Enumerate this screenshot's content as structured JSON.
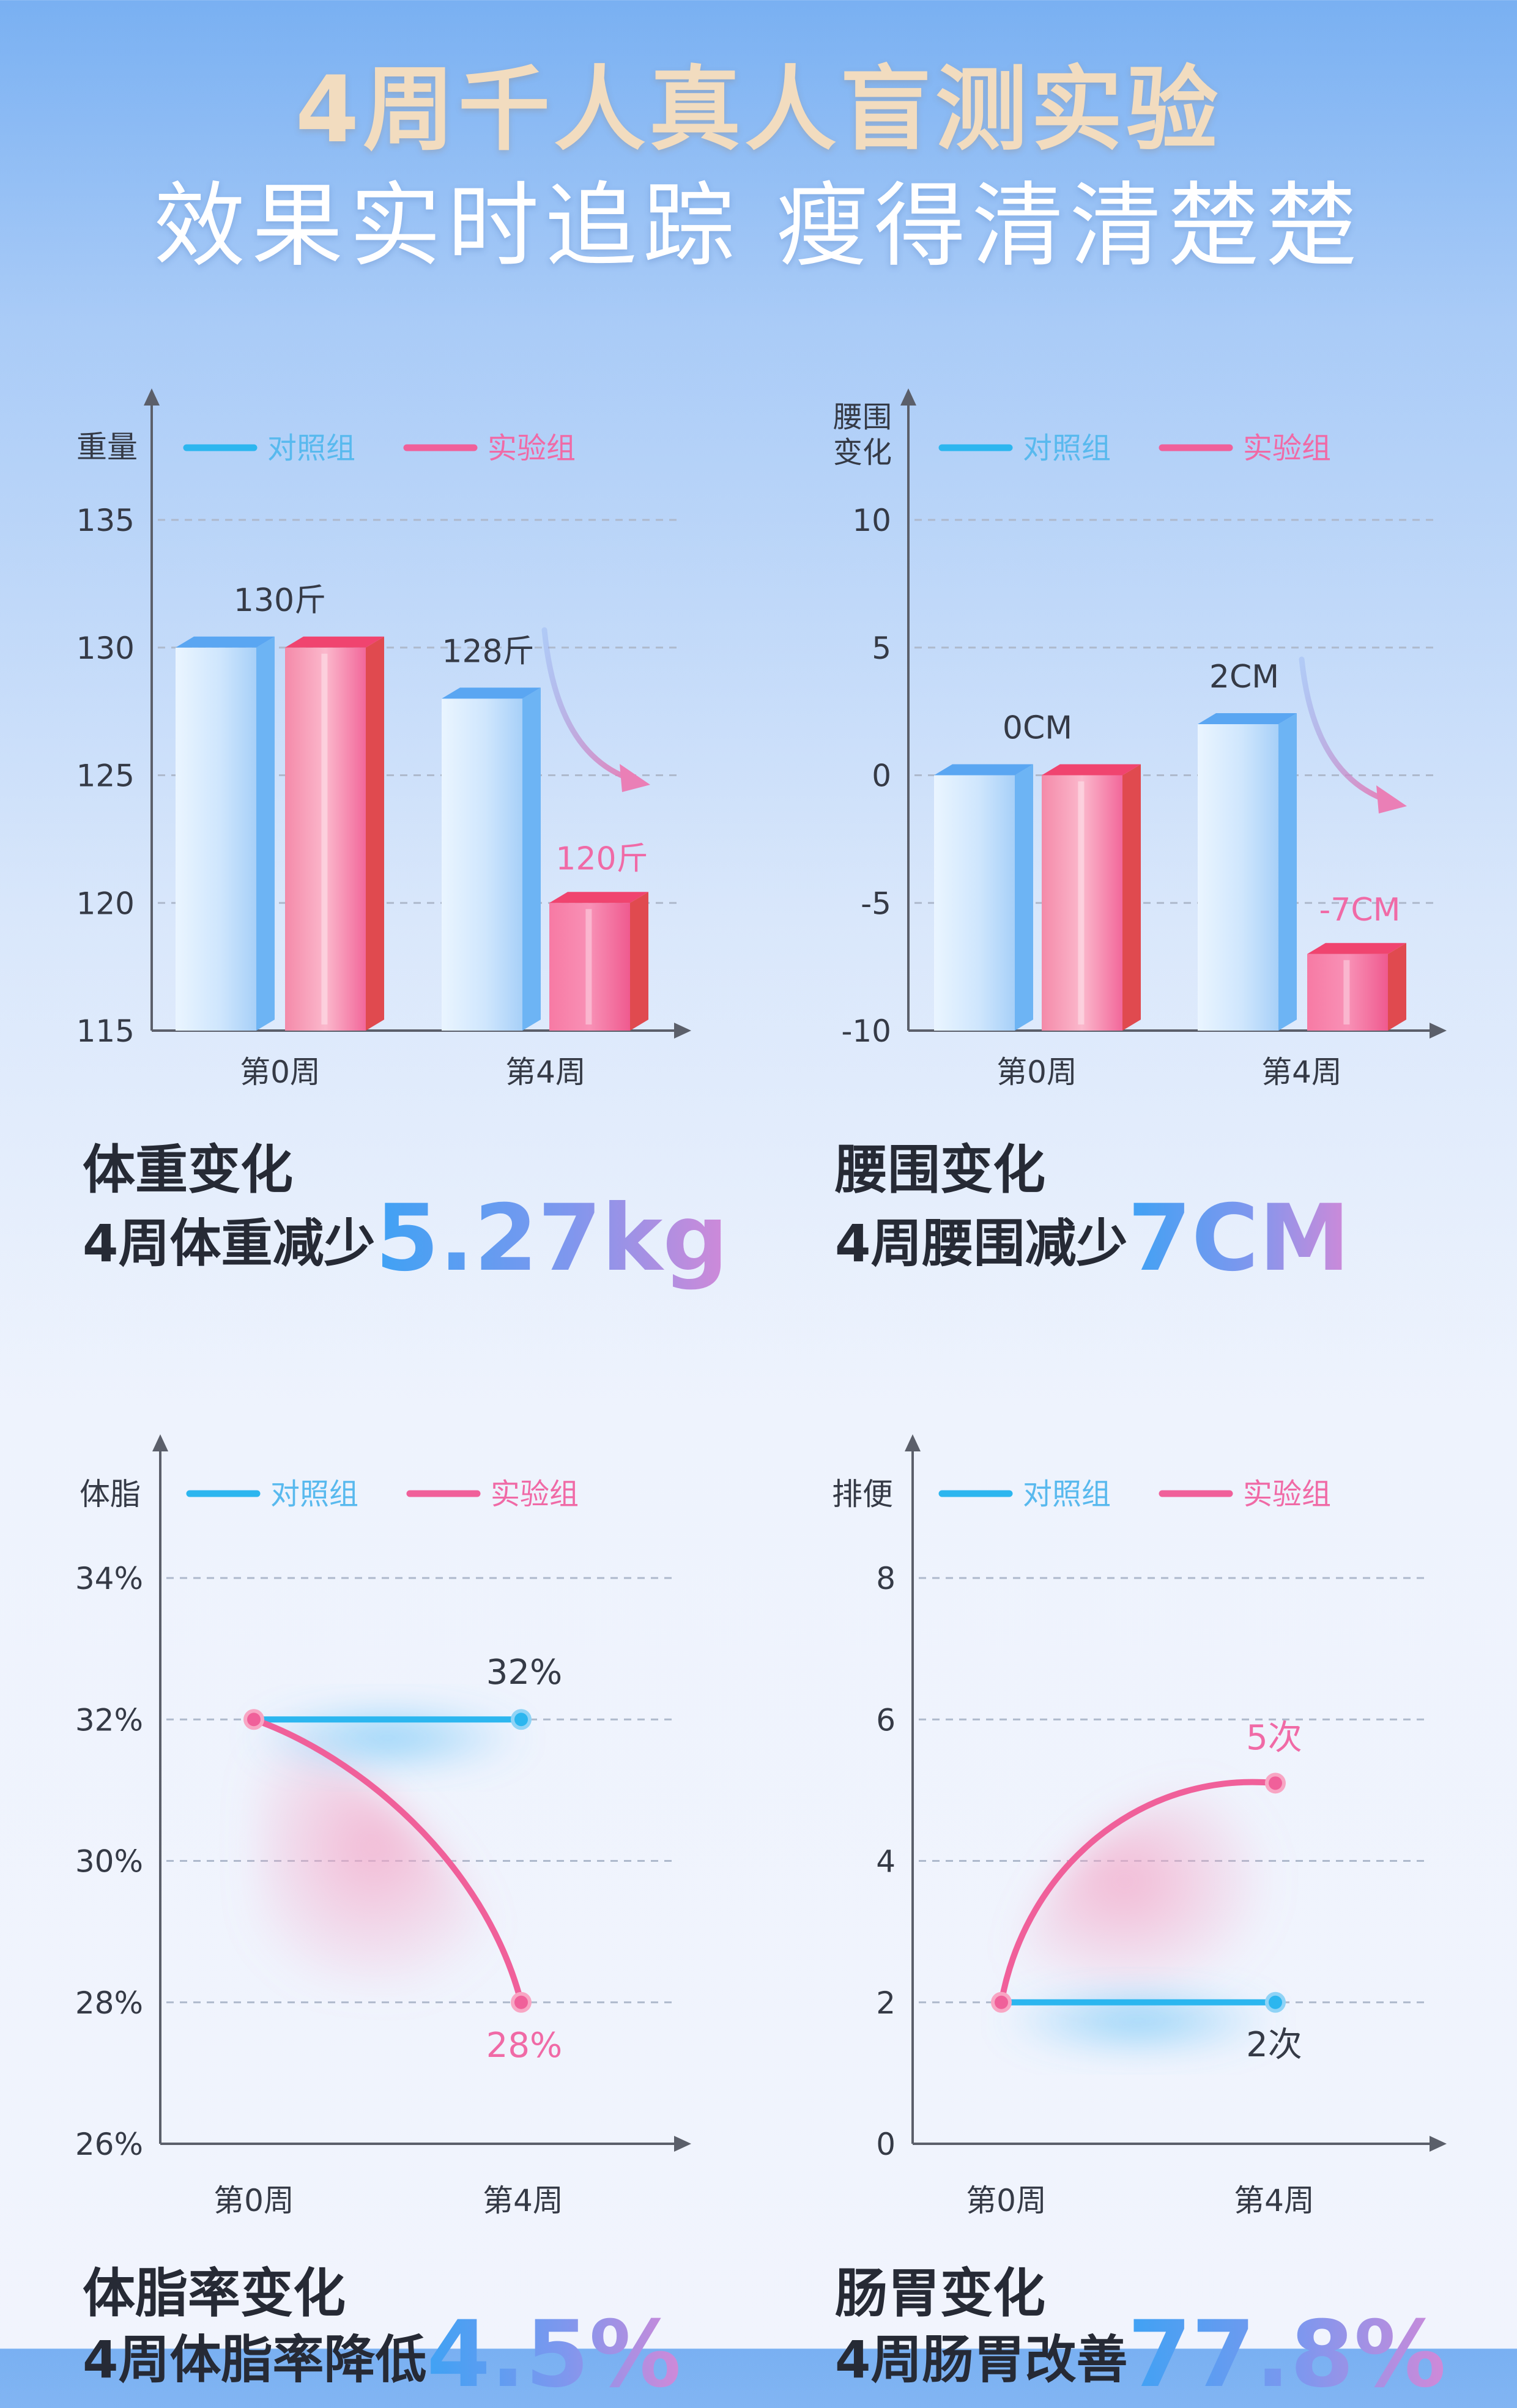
{
  "header": {
    "title": "4周千人真人盲测实验",
    "subtitle": "效果实时追踪  瘦得清清楚楚"
  },
  "colors": {
    "control": "#2cb6ef",
    "experiment": "#f0609a",
    "control_label": "#58b9ee",
    "experiment_label": "#f06aa6",
    "axis": "#5b5f6a",
    "text": "#353a46"
  },
  "chart_data": [
    {
      "id": "weight",
      "type": "bar",
      "ylabel": "重量",
      "ylim": [
        115,
        135
      ],
      "yticks": [
        "135",
        "130",
        "125",
        "120",
        "115"
      ],
      "categories": [
        "第0周",
        "第4周"
      ],
      "series": [
        {
          "name": "对照组",
          "values": [
            130,
            128
          ]
        },
        {
          "name": "实验组",
          "values": [
            130,
            120
          ]
        }
      ],
      "labels": {
        "week0": "130斤",
        "control_w4": "128斤",
        "exp_w4": "120斤"
      },
      "caption_title": "体重变化",
      "caption_prefix": "4周体重减少",
      "caption_value": "5.27kg"
    },
    {
      "id": "waist",
      "type": "bar",
      "ylabel": "腰围变化",
      "ylim": [
        -10,
        10
      ],
      "yticks": [
        "10",
        "5",
        "0",
        "-5",
        "-10"
      ],
      "categories": [
        "第0周",
        "第4周"
      ],
      "series": [
        {
          "name": "对照组",
          "values": [
            0,
            2
          ]
        },
        {
          "name": "实验组",
          "values": [
            0,
            -7
          ]
        }
      ],
      "labels": {
        "week0": "0CM",
        "control_w4": "2CM",
        "exp_w4": "-7CM"
      },
      "caption_title": "腰围变化",
      "caption_prefix": "4周腰围减少",
      "caption_value": "7CM"
    },
    {
      "id": "bodyfat",
      "type": "line",
      "ylabel": "体脂",
      "ylim": [
        26,
        34
      ],
      "yticks": [
        "34%",
        "32%",
        "30%",
        "28%",
        "26%"
      ],
      "categories": [
        "第0周",
        "第4周"
      ],
      "series": [
        {
          "name": "对照组",
          "values": [
            32,
            32
          ]
        },
        {
          "name": "实验组",
          "values": [
            32,
            28
          ]
        }
      ],
      "labels": {
        "control_w4": "32%",
        "exp_w4": "28%"
      },
      "caption_title": "体脂率变化",
      "caption_prefix": "4周体脂率降低",
      "caption_value": "4.5%"
    },
    {
      "id": "bowel",
      "type": "line",
      "ylabel": "排便",
      "ylim": [
        0,
        8
      ],
      "yticks": [
        "8",
        "6",
        "4",
        "2",
        "0"
      ],
      "categories": [
        "第0周",
        "第4周"
      ],
      "series": [
        {
          "name": "对照组",
          "values": [
            2,
            2
          ]
        },
        {
          "name": "实验组",
          "values": [
            2,
            5.1
          ]
        }
      ],
      "labels": {
        "control_w4": "2次",
        "exp_w4": "5次"
      },
      "caption_title": "肠胃变化",
      "caption_prefix": "4周肠胃改善",
      "caption_value": "77.8%"
    }
  ]
}
